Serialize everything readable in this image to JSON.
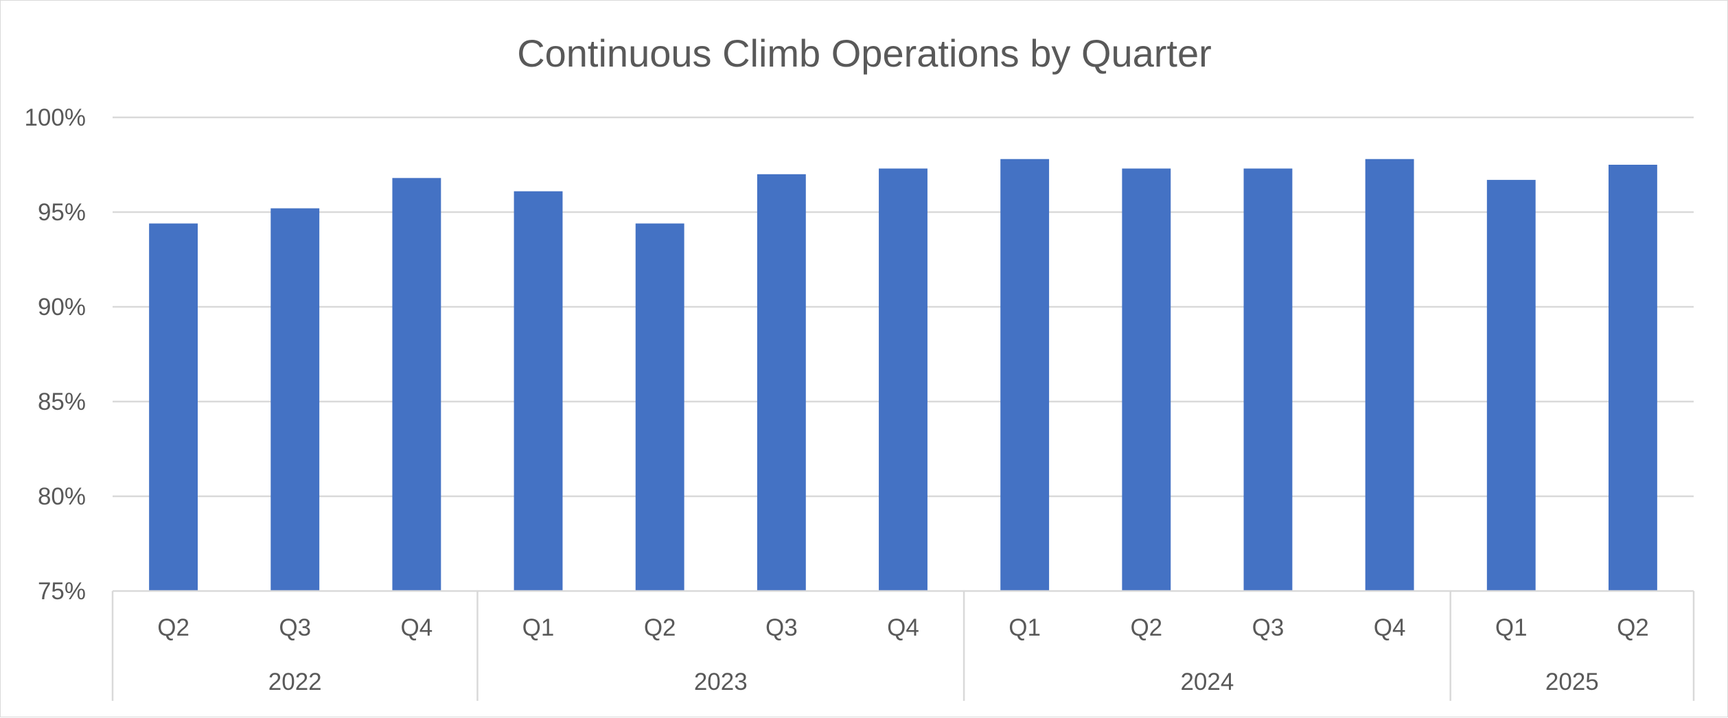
{
  "chart_data": {
    "type": "bar",
    "title": "Continuous Climb Operations by Quarter",
    "xlabel": "",
    "ylabel": "",
    "ylim": [
      75,
      100
    ],
    "y_ticks": [
      "75%",
      "80%",
      "85%",
      "90%",
      "95%",
      "100%"
    ],
    "y_tick_values": [
      75,
      80,
      85,
      90,
      95,
      100
    ],
    "grid": true,
    "legend": "none",
    "categories": [
      "Q2",
      "Q3",
      "Q4",
      "Q1",
      "Q2",
      "Q3",
      "Q4",
      "Q1",
      "Q2",
      "Q3",
      "Q4",
      "Q1",
      "Q2"
    ],
    "groups": [
      {
        "label": "2022",
        "count": 3
      },
      {
        "label": "2023",
        "count": 4
      },
      {
        "label": "2024",
        "count": 4
      },
      {
        "label": "2025",
        "count": 2
      }
    ],
    "series": [
      {
        "name": "Continuous Climb Operations",
        "color": "#4472c4",
        "values": [
          94.4,
          95.2,
          96.8,
          96.1,
          94.4,
          97.0,
          97.3,
          97.8,
          97.3,
          97.3,
          97.8,
          96.7,
          97.5
        ]
      }
    ]
  }
}
